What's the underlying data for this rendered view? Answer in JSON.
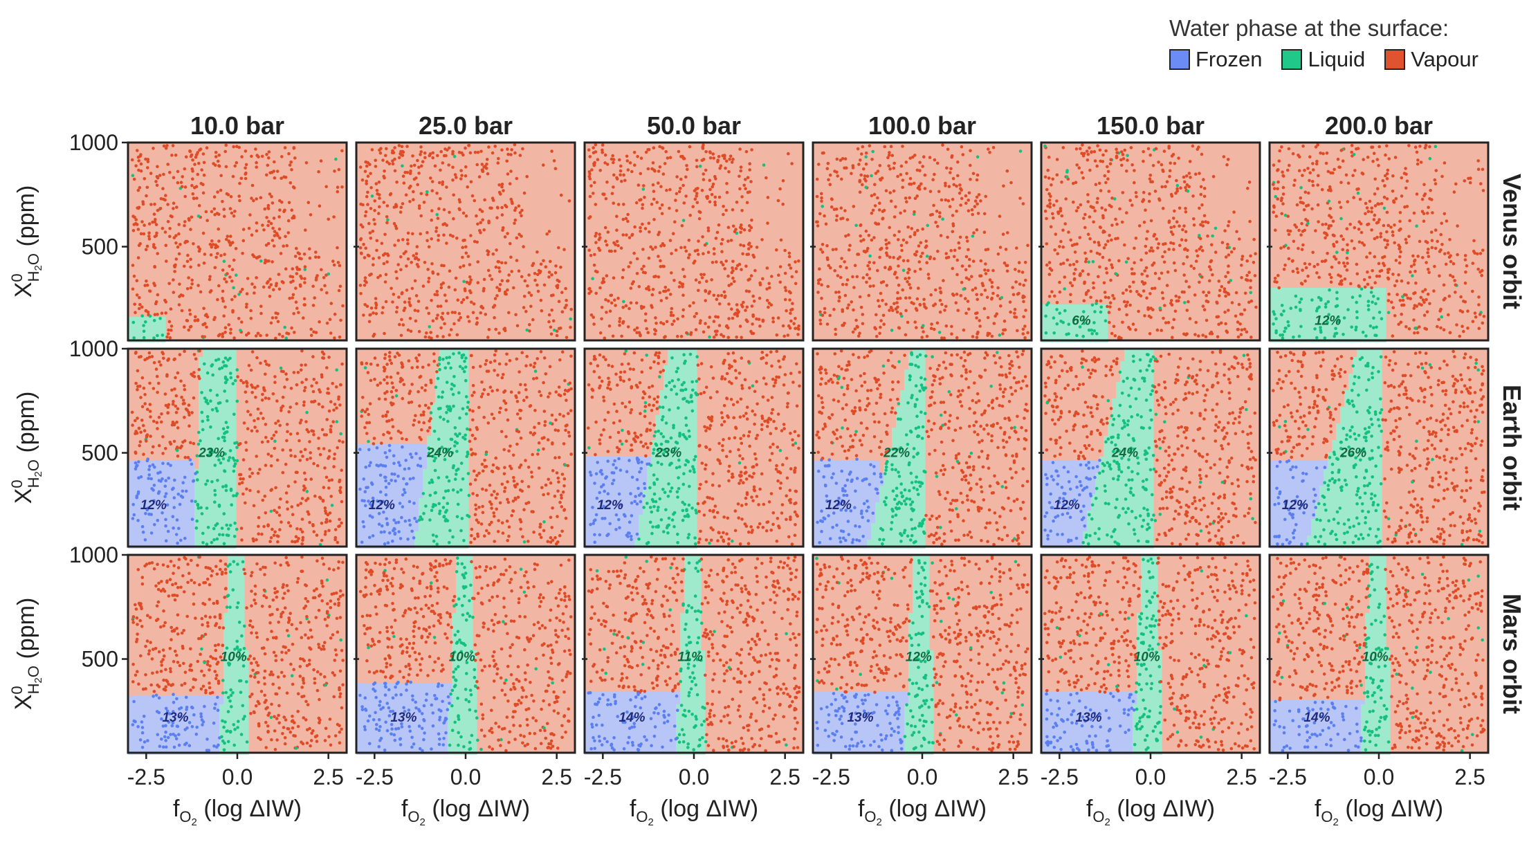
{
  "legend": {
    "title": "Water phase at the surface:",
    "items": [
      {
        "label": "Frozen",
        "color": "#6b8cf5"
      },
      {
        "label": "Liquid",
        "color": "#20c98a"
      },
      {
        "label": "Vapour",
        "color": "#e0532f"
      }
    ]
  },
  "chart_data": {
    "type": "scatter",
    "columns": [
      "10.0 bar",
      "25.0 bar",
      "50.0 bar",
      "100.0 bar",
      "150.0 bar",
      "200.0 bar"
    ],
    "rows": [
      "Venus orbit",
      "Earth orbit",
      "Mars orbit"
    ],
    "xlabel": "f_O2 (log ΔIW)",
    "ylabel": "X⁰_H2O (ppm)",
    "xlim": [
      -3.0,
      3.0
    ],
    "ylim": [
      50,
      1000
    ],
    "x_ticks": [
      "-2.5",
      "0.0",
      "2.5"
    ],
    "y_ticks": [
      "500",
      "1000"
    ],
    "colors": {
      "frozen_region": "#b8c5f7",
      "liquid_region": "#9fe9cc",
      "vapour_region": "#f2b7a4",
      "frozen_point": "#5b7ff0",
      "liquid_point": "#14c07e",
      "vapour_point": "#df4b26"
    },
    "annotations": {
      "liquid": [
        [
          "",
          "",
          "",
          "",
          "6%",
          "12%"
        ],
        [
          "23%",
          "24%",
          "23%",
          "22%",
          "24%",
          "26%"
        ],
        [
          "10%",
          "10%",
          "11%",
          "12%",
          "10%",
          "10%"
        ]
      ],
      "frozen": [
        [
          "",
          "",
          "",
          "",
          "",
          ""
        ],
        [
          "12%",
          "12%",
          "12%",
          "12%",
          "12%",
          "12%"
        ],
        [
          "13%",
          "13%",
          "14%",
          "13%",
          "13%",
          "14%"
        ]
      ]
    }
  }
}
